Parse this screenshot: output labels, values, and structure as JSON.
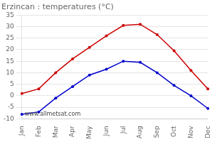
{
  "chart_data": {
    "type": "line",
    "title": "Erzincan : temperatures (°C)",
    "categories": [
      "Jan",
      "Feb",
      "Mar",
      "Apr",
      "May",
      "Jun",
      "Jul",
      "Aug",
      "Sep",
      "Oct",
      "Nov",
      "Dec"
    ],
    "series": [
      {
        "color": "#cc0000",
        "values": [
          1,
          3,
          10,
          16,
          21,
          26,
          30.5,
          31,
          26.5,
          19.5,
          11,
          3
        ]
      },
      {
        "color": "#0000cc",
        "values": [
          -8,
          -7,
          -1,
          4,
          9,
          11.5,
          15,
          14.5,
          10,
          4.5,
          0,
          -5.5
        ]
      }
    ],
    "ylim": [
      -10,
      35
    ],
    "yticks": [
      -10,
      -5,
      0,
      5,
      10,
      15,
      20,
      25,
      30,
      35
    ],
    "grid": true,
    "annotations": [
      "www.allmetsat.com"
    ]
  }
}
